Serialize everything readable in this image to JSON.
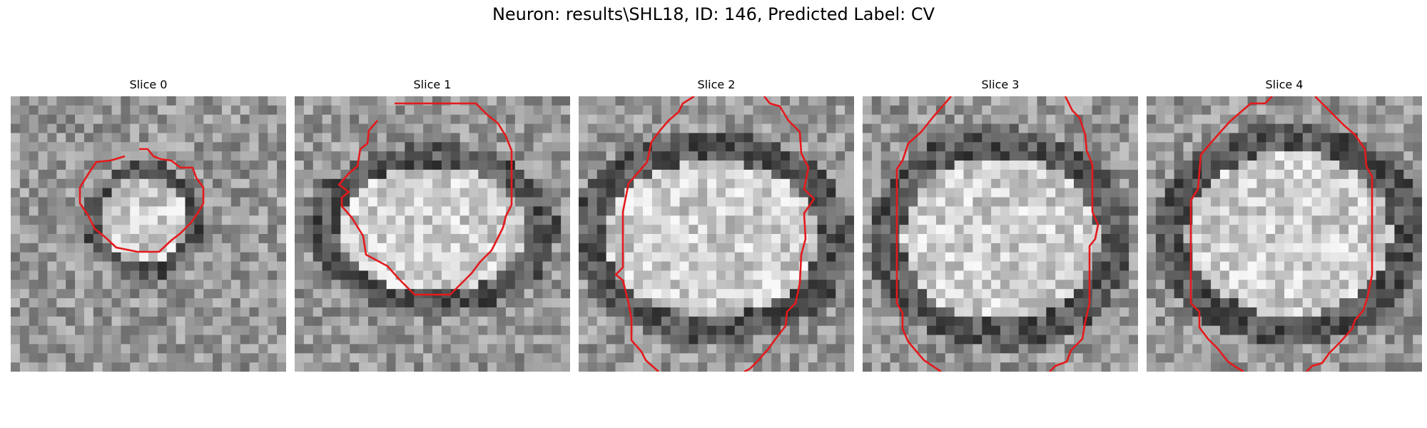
{
  "figure": {
    "title": "Neuron: results\\SHL18, ID: 146, Predicted Label: CV"
  },
  "slices": [
    {
      "title": "Slice 0",
      "contour_color": "#e41a1c"
    },
    {
      "title": "Slice 1",
      "contour_color": "#e41a1c"
    },
    {
      "title": "Slice 2",
      "contour_color": "#e41a1c"
    },
    {
      "title": "Slice 3",
      "contour_color": "#e41a1c"
    },
    {
      "title": "Slice 4",
      "contour_color": "#e41a1c"
    }
  ]
}
